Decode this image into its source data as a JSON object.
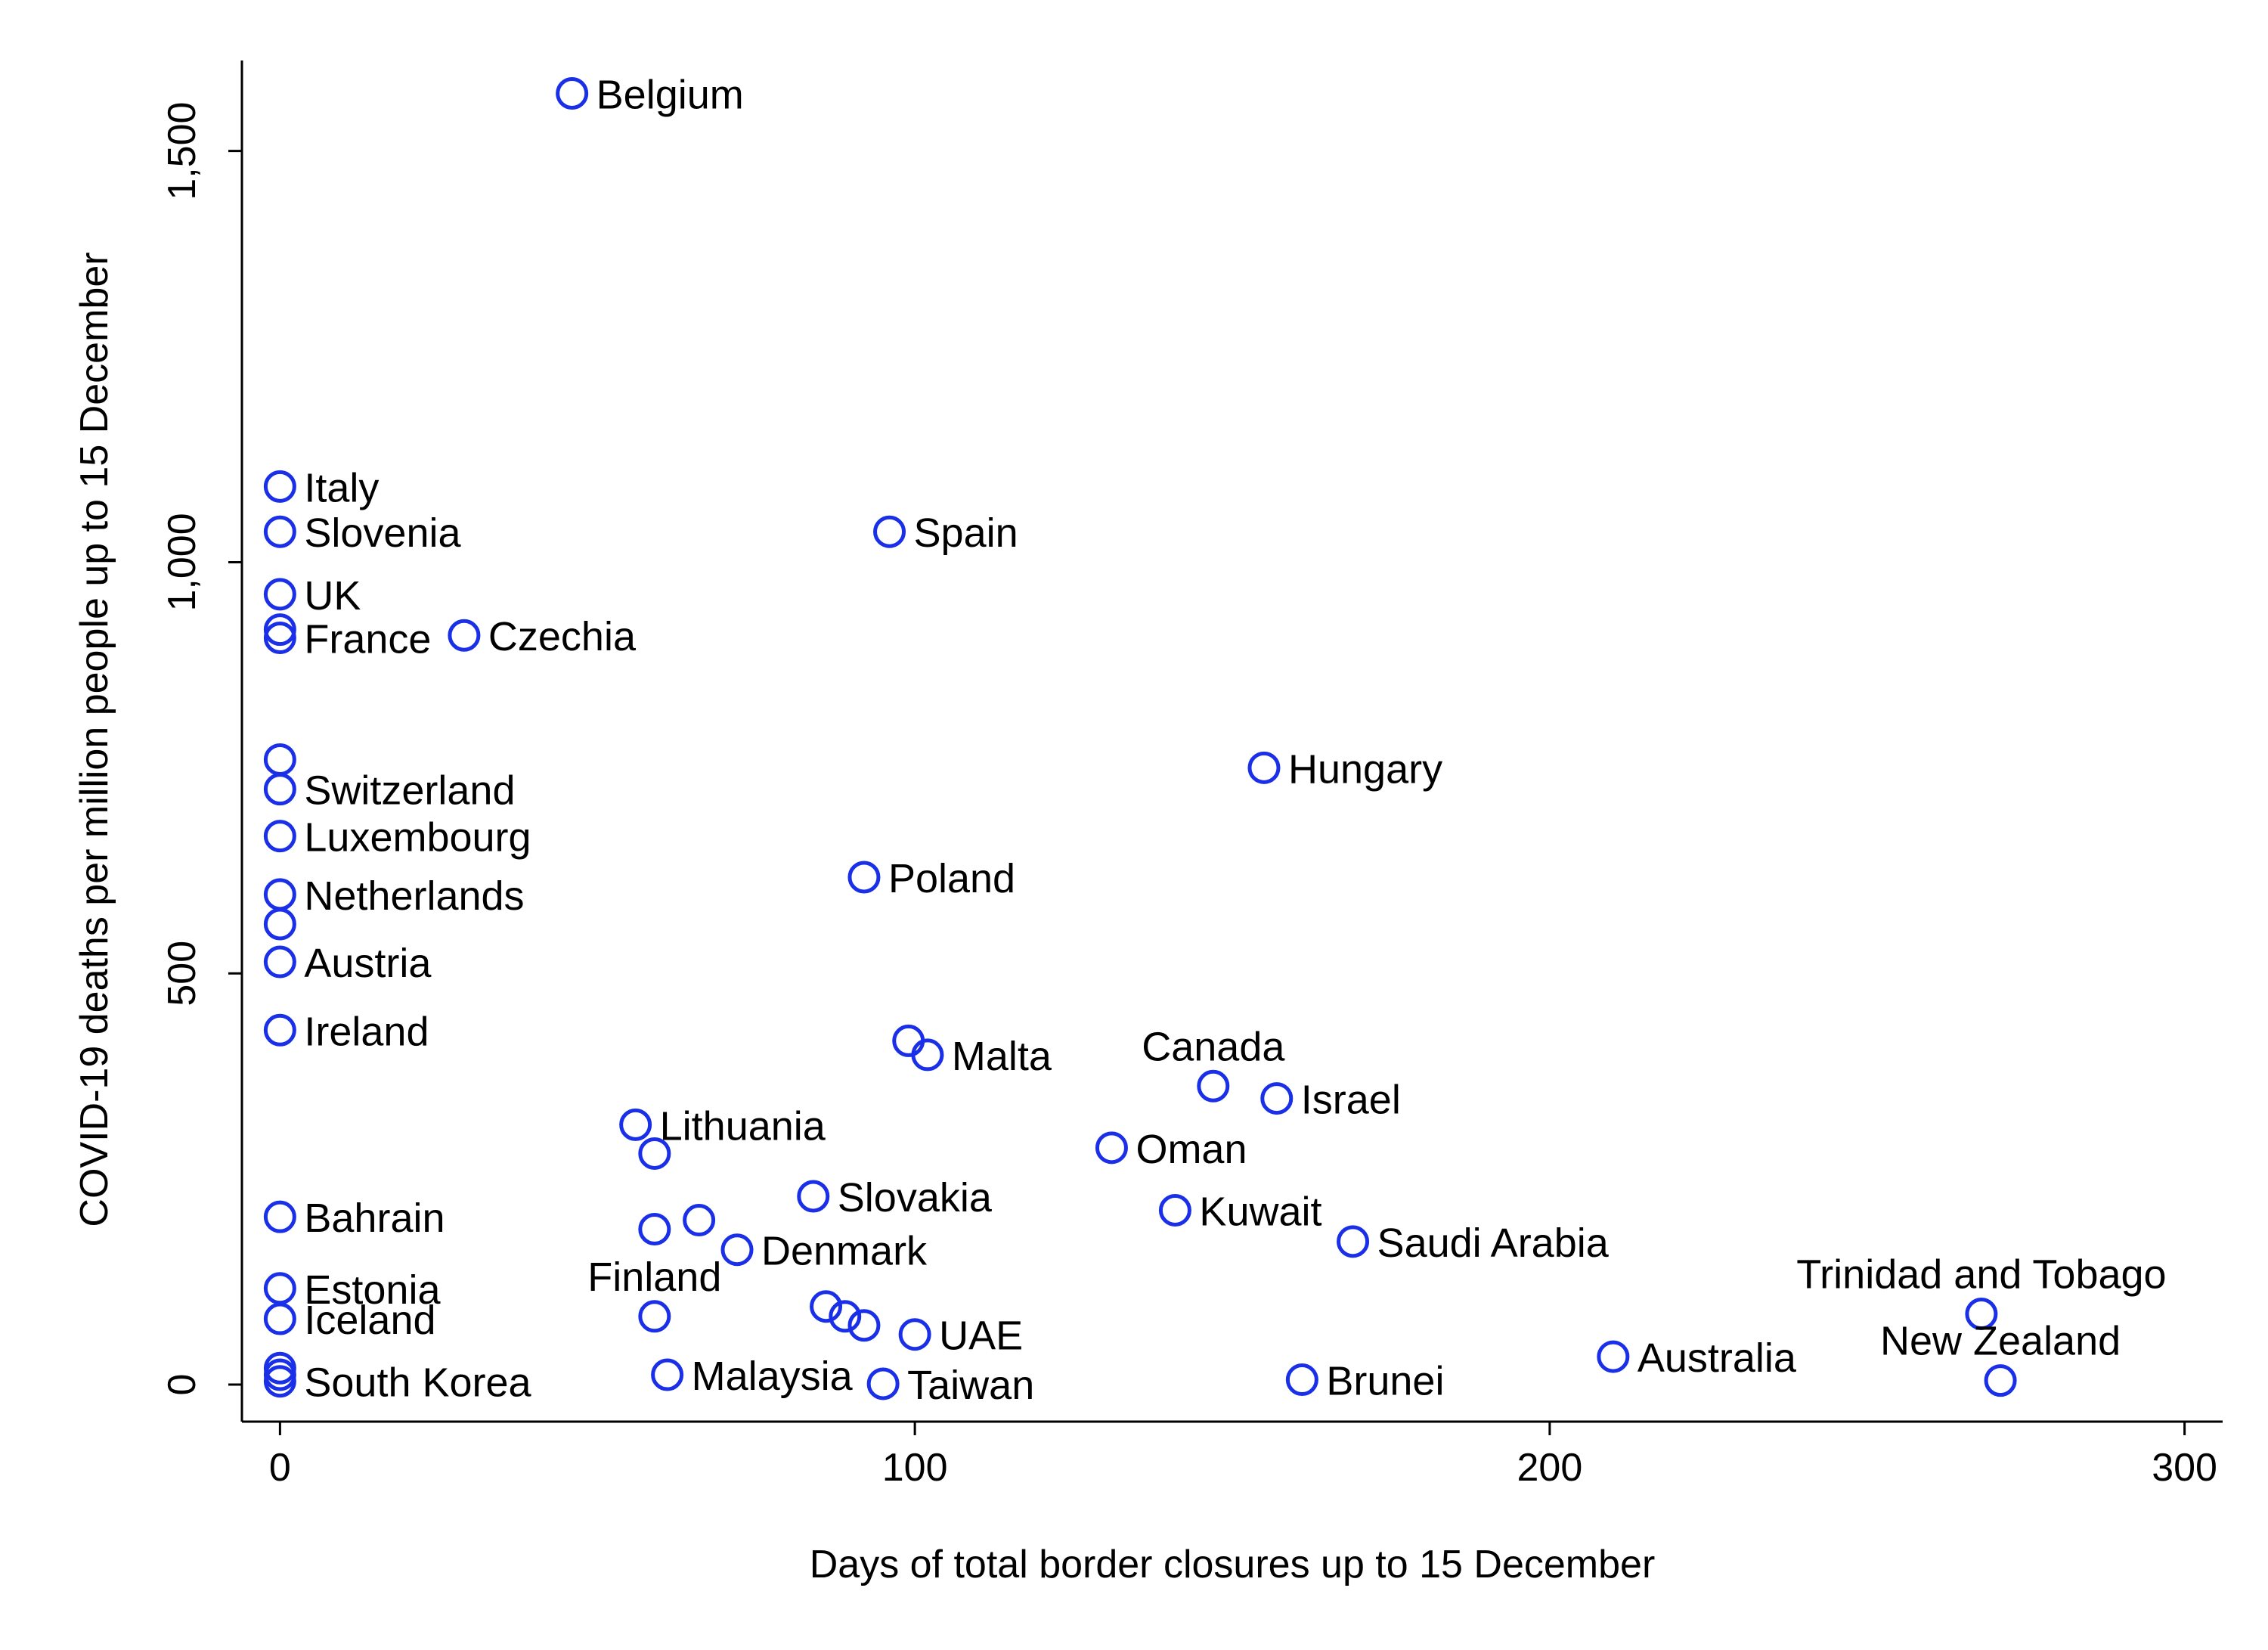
{
  "chart_data": {
    "type": "scatter",
    "xlabel": "Days of total border closures up to 15 December",
    "ylabel": "COVID-19 deaths per million people up to 15 December",
    "xlim": [
      -6,
      306
    ],
    "ylim": [
      -45,
      1610
    ],
    "x_ticks": [
      {
        "value": 0,
        "label": "0"
      },
      {
        "value": 100,
        "label": "100"
      },
      {
        "value": 200,
        "label": "200"
      },
      {
        "value": 300,
        "label": "300"
      }
    ],
    "y_ticks": [
      {
        "value": 0,
        "label": "0"
      },
      {
        "value": 500,
        "label": "500"
      },
      {
        "value": 1000,
        "label": "1,000"
      },
      {
        "value": 1500,
        "label": "1,500"
      }
    ],
    "marker_color": "#1a2fe8",
    "grid": false,
    "points": [
      {
        "x": 46,
        "y": 1570,
        "label": "Belgium",
        "pos": "right"
      },
      {
        "x": 0,
        "y": 1092,
        "label": "Italy",
        "pos": "right"
      },
      {
        "x": 0,
        "y": 1037,
        "label": "Slovenia",
        "pos": "right"
      },
      {
        "x": 96,
        "y": 1037,
        "label": "Spain",
        "pos": "right"
      },
      {
        "x": 0,
        "y": 961,
        "label": "UK",
        "pos": "right"
      },
      {
        "x": 0,
        "y": 918,
        "label": "",
        "pos": "right"
      },
      {
        "x": 0,
        "y": 908,
        "label": "France",
        "pos": "right"
      },
      {
        "x": 29,
        "y": 911,
        "label": "Czechia",
        "pos": "right"
      },
      {
        "x": 0,
        "y": 760,
        "label": "",
        "pos": "right"
      },
      {
        "x": 155,
        "y": 750,
        "label": "Hungary",
        "pos": "right"
      },
      {
        "x": 0,
        "y": 724,
        "label": "Switzerland",
        "pos": "right"
      },
      {
        "x": 0,
        "y": 667,
        "label": "Luxembourg",
        "pos": "right"
      },
      {
        "x": 92,
        "y": 617,
        "label": "Poland",
        "pos": "right"
      },
      {
        "x": 0,
        "y": 596,
        "label": "Netherlands",
        "pos": "right"
      },
      {
        "x": 0,
        "y": 560,
        "label": "",
        "pos": "right"
      },
      {
        "x": 0,
        "y": 514,
        "label": "Austria",
        "pos": "right"
      },
      {
        "x": 0,
        "y": 431,
        "label": "Ireland",
        "pos": "right"
      },
      {
        "x": 99,
        "y": 418,
        "label": "",
        "pos": "right"
      },
      {
        "x": 102,
        "y": 401,
        "label": "Malta",
        "pos": "right"
      },
      {
        "x": 147,
        "y": 363,
        "label": "Canada",
        "pos": "above"
      },
      {
        "x": 157,
        "y": 348,
        "label": "Israel",
        "pos": "right"
      },
      {
        "x": 56,
        "y": 316,
        "label": "Lithuania",
        "pos": "right"
      },
      {
        "x": 59,
        "y": 281,
        "label": "",
        "pos": "right"
      },
      {
        "x": 131,
        "y": 288,
        "label": "Oman",
        "pos": "right"
      },
      {
        "x": 84,
        "y": 229,
        "label": "Slovakia",
        "pos": "right"
      },
      {
        "x": 141,
        "y": 212,
        "label": "Kuwait",
        "pos": "right"
      },
      {
        "x": 0,
        "y": 204,
        "label": "Bahrain",
        "pos": "right"
      },
      {
        "x": 66,
        "y": 200,
        "label": "",
        "pos": "right"
      },
      {
        "x": 59,
        "y": 189,
        "label": "",
        "pos": "right"
      },
      {
        "x": 72,
        "y": 164,
        "label": "Denmark",
        "pos": "right"
      },
      {
        "x": 169,
        "y": 174,
        "label": "Saudi Arabia",
        "pos": "right"
      },
      {
        "x": 0,
        "y": 117,
        "label": "Estonia",
        "pos": "right"
      },
      {
        "x": 86,
        "y": 95,
        "label": "",
        "pos": "right"
      },
      {
        "x": 89,
        "y": 83,
        "label": "",
        "pos": "right"
      },
      {
        "x": 92,
        "y": 72,
        "label": "",
        "pos": "right"
      },
      {
        "x": 59,
        "y": 83,
        "label": "Finland",
        "pos": "above"
      },
      {
        "x": 0,
        "y": 80,
        "label": "Iceland",
        "pos": "right"
      },
      {
        "x": 100,
        "y": 61,
        "label": "UAE",
        "pos": "right"
      },
      {
        "x": 268,
        "y": 86,
        "label": "Trinidad and Tobago",
        "pos": "above"
      },
      {
        "x": 210,
        "y": 34,
        "label": "Australia",
        "pos": "right"
      },
      {
        "x": 0,
        "y": 20,
        "label": "",
        "pos": "right"
      },
      {
        "x": 0,
        "y": 12,
        "label": "",
        "pos": "right"
      },
      {
        "x": 0,
        "y": 4,
        "label": "South Korea",
        "pos": "right"
      },
      {
        "x": 61,
        "y": 12,
        "label": "Malaysia",
        "pos": "right"
      },
      {
        "x": 95,
        "y": 1,
        "label": "Taiwan",
        "pos": "right"
      },
      {
        "x": 161,
        "y": 6,
        "label": "Brunei",
        "pos": "right"
      },
      {
        "x": 271,
        "y": 5,
        "label": "New Zealand",
        "pos": "above"
      }
    ]
  }
}
